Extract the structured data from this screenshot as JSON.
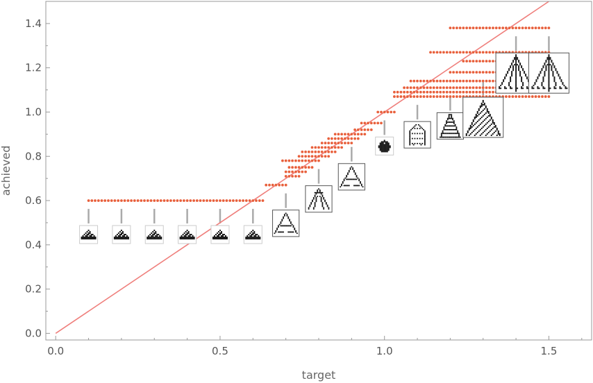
{
  "chart_data": {
    "type": "scatter",
    "title": "",
    "xlabel": "target",
    "ylabel": "achieved",
    "xlim": [
      -0.03,
      1.63
    ],
    "ylim": [
      -0.03,
      1.5
    ],
    "x_ticks": [
      "0.0",
      "0.5",
      "1.0",
      "1.5"
    ],
    "y_ticks": [
      "0.0",
      "0.2",
      "0.4",
      "0.6",
      "0.8",
      "1.0",
      "1.2",
      "1.4"
    ],
    "grid": false,
    "legend": "none",
    "colors": {
      "points": "#e8603c",
      "diagonal": "#ef7f7c",
      "connector": "#aaaaaa",
      "frame": "#999999"
    },
    "reference_line": {
      "from": [
        0,
        0
      ],
      "to": [
        1.5,
        1.5
      ]
    },
    "point_groups": [
      {
        "y": 0.6,
        "x_from": 0.1,
        "x_to": 0.63
      },
      {
        "y": 0.67,
        "x_from": 0.64,
        "x_to": 0.7
      },
      {
        "y": 0.71,
        "x_from": 0.7,
        "x_to": 0.74
      },
      {
        "y": 0.73,
        "x_from": 0.7,
        "x_to": 0.76
      },
      {
        "y": 0.75,
        "x_from": 0.71,
        "x_to": 0.78
      },
      {
        "y": 0.78,
        "x_from": 0.69,
        "x_to": 0.8
      },
      {
        "y": 0.8,
        "x_from": 0.74,
        "x_to": 0.83
      },
      {
        "y": 0.82,
        "x_from": 0.75,
        "x_to": 0.85
      },
      {
        "y": 0.84,
        "x_from": 0.78,
        "x_to": 0.87
      },
      {
        "y": 0.86,
        "x_from": 0.81,
        "x_to": 0.9
      },
      {
        "y": 0.88,
        "x_from": 0.83,
        "x_to": 0.92
      },
      {
        "y": 0.9,
        "x_from": 0.85,
        "x_to": 0.94
      },
      {
        "y": 0.92,
        "x_from": 0.91,
        "x_to": 0.96
      },
      {
        "y": 0.95,
        "x_from": 0.93,
        "x_to": 0.99
      },
      {
        "y": 1.0,
        "x_from": 0.98,
        "x_to": 1.03
      },
      {
        "y": 1.07,
        "x_from": 1.03,
        "x_to": 1.5
      },
      {
        "y": 1.09,
        "x_from": 1.03,
        "x_to": 1.5
      },
      {
        "y": 1.11,
        "x_from": 1.06,
        "x_to": 1.5
      },
      {
        "y": 1.14,
        "x_from": 1.08,
        "x_to": 1.4
      },
      {
        "y": 1.18,
        "x_from": 1.2,
        "x_to": 1.5
      },
      {
        "y": 1.23,
        "x_from": 1.24,
        "x_to": 1.4
      },
      {
        "y": 1.27,
        "x_from": 1.14,
        "x_to": 1.5
      },
      {
        "y": 1.38,
        "x_from": 1.2,
        "x_to": 1.5
      }
    ],
    "annotations": [
      {
        "target": 0.1,
        "achieved": 0.6,
        "image": "pattern-small-triangle",
        "size": "small"
      },
      {
        "target": 0.2,
        "achieved": 0.6,
        "image": "pattern-small-triangle",
        "size": "small"
      },
      {
        "target": 0.3,
        "achieved": 0.6,
        "image": "pattern-small-triangle",
        "size": "small"
      },
      {
        "target": 0.4,
        "achieved": 0.6,
        "image": "pattern-small-triangle",
        "size": "small"
      },
      {
        "target": 0.5,
        "achieved": 0.6,
        "image": "pattern-small-triangle",
        "size": "small"
      },
      {
        "target": 0.6,
        "achieved": 0.6,
        "image": "pattern-small-triangle",
        "size": "small"
      },
      {
        "target": 0.7,
        "achieved": 0.67,
        "image": "pattern-a-shape",
        "size": "medium"
      },
      {
        "target": 0.8,
        "achieved": 0.78,
        "image": "pattern-branching",
        "size": "medium"
      },
      {
        "target": 0.9,
        "achieved": 0.88,
        "image": "pattern-a-shape",
        "size": "medium"
      },
      {
        "target": 1.0,
        "achieved": 1.0,
        "image": "pattern-blob",
        "size": "small"
      },
      {
        "target": 1.1,
        "achieved": 1.07,
        "image": "pattern-robot",
        "size": "medium"
      },
      {
        "target": 1.2,
        "achieved": 1.11,
        "image": "pattern-tower",
        "size": "medium"
      },
      {
        "target": 1.3,
        "achieved": 1.18,
        "image": "pattern-large-tree",
        "size": "large"
      },
      {
        "target": 1.4,
        "achieved": 1.38,
        "image": "pattern-fountain",
        "size": "large"
      },
      {
        "target": 1.5,
        "achieved": 1.38,
        "image": "pattern-fountain",
        "size": "large"
      }
    ]
  }
}
